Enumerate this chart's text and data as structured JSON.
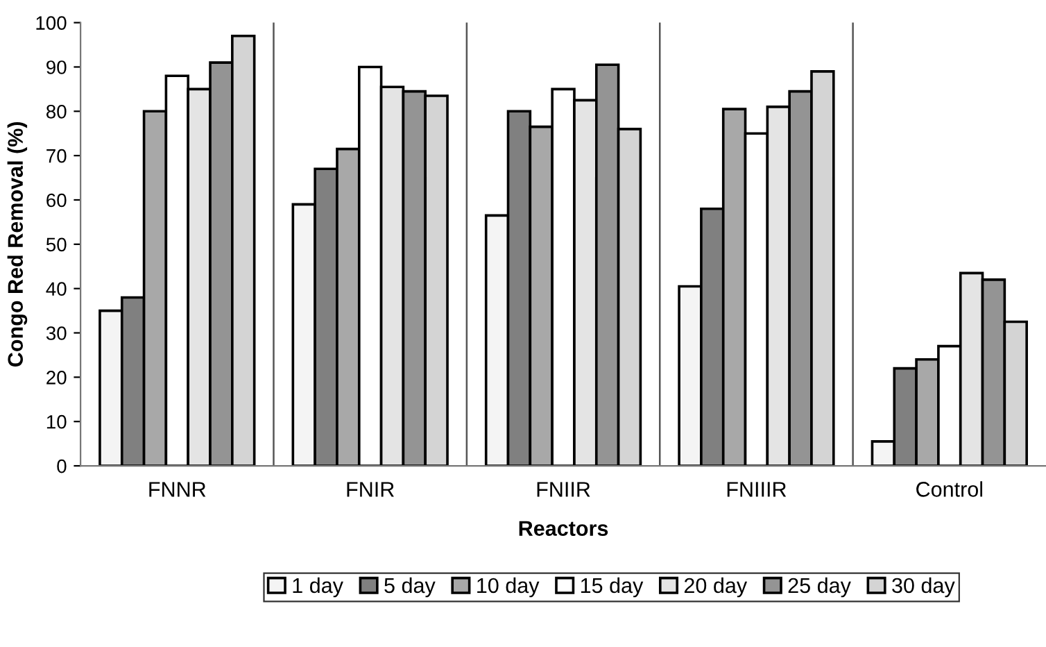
{
  "chart_data": {
    "type": "bar",
    "xlabel": "Reactors",
    "ylabel": "Congo Red Removal (%)",
    "categories": [
      "FNNR",
      "FNIR",
      "FNIIR",
      "FNIIIR",
      "Control"
    ],
    "series": [
      {
        "name": "1 day",
        "color": "#f4f4f4",
        "values": [
          35,
          59,
          56.5,
          40.5,
          5.5
        ]
      },
      {
        "name": "5 day",
        "color": "#808080",
        "values": [
          38,
          67,
          80,
          58,
          22
        ]
      },
      {
        "name": "10 day",
        "color": "#a8a8a8",
        "values": [
          80,
          71.5,
          76.5,
          80.5,
          24
        ]
      },
      {
        "name": "15 day",
        "color": "#ffffff",
        "values": [
          88,
          90,
          85,
          75,
          27
        ]
      },
      {
        "name": "20 day",
        "color": "#e4e4e4",
        "values": [
          85,
          85.5,
          82.5,
          81,
          43.5
        ]
      },
      {
        "name": "25 day",
        "color": "#949494",
        "values": [
          91,
          84.5,
          90.5,
          84.5,
          42
        ]
      },
      {
        "name": "30 day",
        "color": "#d4d4d4",
        "values": [
          97,
          83.5,
          76,
          89,
          32.5
        ]
      }
    ],
    "ylim": [
      0,
      100
    ],
    "yticks": [
      0,
      10,
      20,
      30,
      40,
      50,
      60,
      70,
      80,
      90,
      100
    ],
    "grid": "x",
    "legend": "bottom"
  }
}
